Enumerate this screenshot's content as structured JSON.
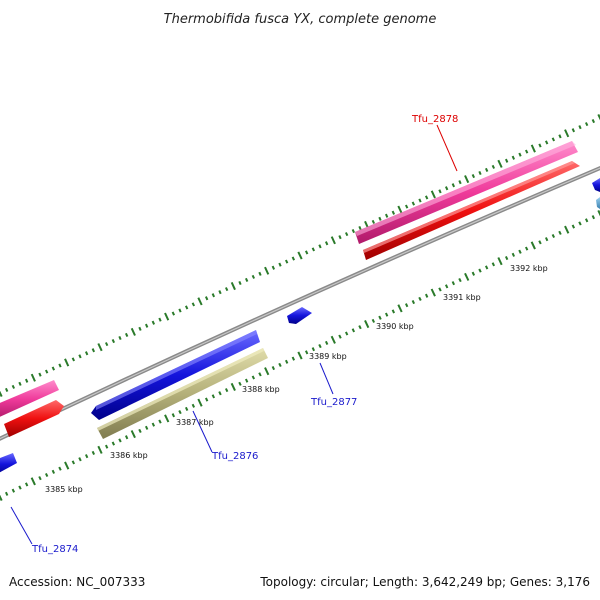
{
  "title": "Thermobifida fusca YX, complete genome",
  "footer": {
    "accession": "Accession: NC_007333",
    "summary": "Topology: circular; Length: 3,642,249 bp; Genes: 3,176"
  },
  "colors": {
    "pink": "#ef3a9a",
    "red": "#ef1010",
    "blue": "#1414dc",
    "olive": "#b4b07a",
    "lightblue": "#5aa0d0",
    "backbone": "#8a8a8a",
    "tick": "#2a7a2a",
    "label_red": "#dd0000",
    "label_blue": "#1a1acc"
  },
  "kbp_labels": [
    "3385 kbp",
    "3386 kbp",
    "3387 kbp",
    "3388 kbp",
    "3389 kbp",
    "3390 kbp",
    "3391 kbp",
    "3392 kbp"
  ],
  "gene_labels": [
    {
      "name": "Tfu_2878",
      "color": "red"
    },
    {
      "name": "Tfu_2877",
      "color": "blue"
    },
    {
      "name": "Tfu_2876",
      "color": "blue"
    },
    {
      "name": "Tfu_2874",
      "color": "blue"
    }
  ]
}
